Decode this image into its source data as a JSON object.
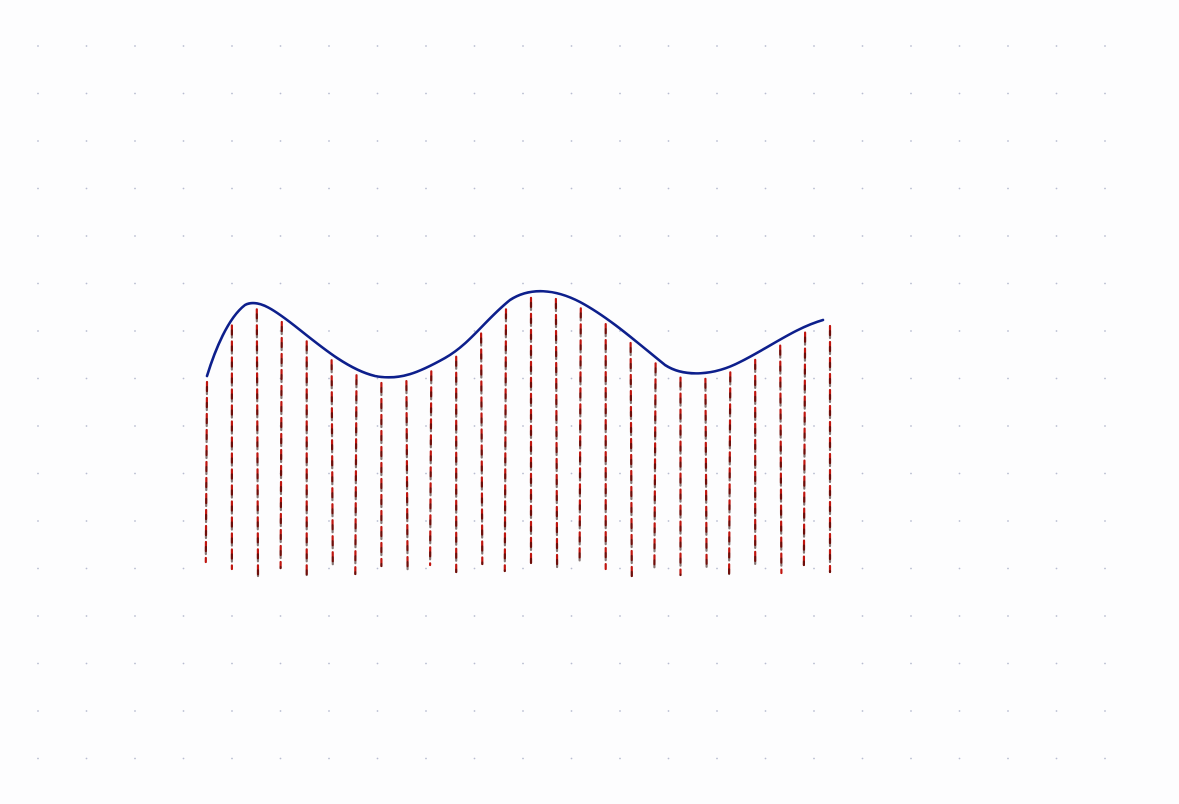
{
  "figure": {
    "kind": "hand-drawn sketch on dot-grid paper",
    "curve_color": "#0d1f8c",
    "stroke_color": "#c0150f",
    "stroke_dash_color": "#2a0a06",
    "grid_dot_color": "#b8bcd0",
    "stroke_count": 26
  }
}
